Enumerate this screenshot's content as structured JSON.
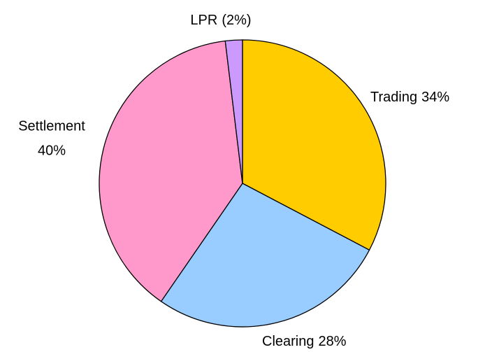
{
  "chart_data": {
    "type": "pie",
    "categories": [
      "Trading",
      "Clearing",
      "Settlement",
      "LPR"
    ],
    "values": [
      34,
      28,
      40,
      2
    ],
    "value_labels": [
      "34%",
      "28%",
      "40%",
      "(2%)"
    ],
    "colors": [
      "#ffcc00",
      "#99ccff",
      "#ff99cc",
      "#cc99ff"
    ]
  }
}
